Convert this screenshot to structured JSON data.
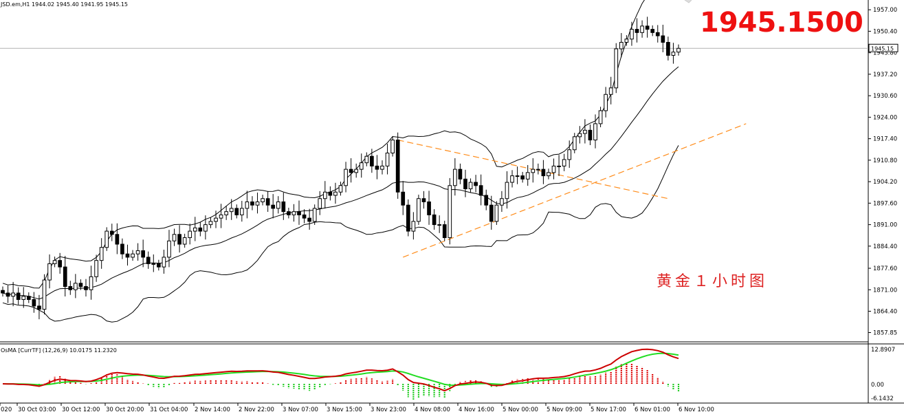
{
  "header": {
    "symbol_info": "JSD.em,H1  1944.02 1945.40 1941.95 1945.15"
  },
  "overlay": {
    "current_price": "1945.1500",
    "chinese_note": "黄金１小时图"
  },
  "oscillator": {
    "title": "OsMA [CurrTF] (12,26,9) 10.0175 11.2320",
    "axis_labels": [
      "12.8907",
      "0.00",
      "-6.1432"
    ]
  },
  "price_tag": "1945.15",
  "colors": {
    "candle_up": "#ffffff",
    "candle_down": "#000000",
    "bands": "#000000",
    "trend_dash": "#ff8c1a",
    "histogram_pos": "#dd0000",
    "histogram_neg": "#22cc22",
    "macd_line": "#cc0000",
    "signal_line": "#22dd22",
    "big_price": "#ee1111"
  },
  "chart_data": {
    "type": "candlestick",
    "title": "",
    "ylim": [
      1855,
      1960
    ],
    "y_ticks": [
      "1957.00",
      "1950.40",
      "1943.80",
      "1937.20",
      "1930.60",
      "1924.00",
      "1917.40",
      "1910.80",
      "1904.20",
      "1897.60",
      "1891.00",
      "1884.40",
      "1877.60",
      "1871.00",
      "1864.40",
      "1857.85"
    ],
    "x_ticks": [
      "020",
      "30 Oct 03:00",
      "30 Oct 12:00",
      "30 Oct 20:00",
      "31 Oct 04:00",
      "2 Nov 14:00",
      "2 Nov 22:00",
      "3 Nov 07:00",
      "3 Nov 15:00",
      "3 Nov 23:00",
      "4 Nov 08:00",
      "4 Nov 16:00",
      "5 Nov 00:00",
      "5 Nov 09:00",
      "5 Nov 17:00",
      "6 Nov 01:00",
      "6 Nov 10:00"
    ],
    "last_price": 1945.15,
    "close": [
      1870,
      1869,
      1870,
      1868,
      1869,
      1868,
      1866,
      1865,
      1874,
      1879,
      1880,
      1878,
      1872,
      1871,
      1873,
      1872,
      1871,
      1875,
      1880,
      1884,
      1889,
      1888,
      1885,
      1882,
      1881,
      1882,
      1883,
      1881,
      1879,
      1879,
      1878,
      1881,
      1886,
      1888,
      1885,
      1887,
      1889,
      1890,
      1889,
      1891,
      1892,
      1893,
      1894,
      1895,
      1896,
      1894,
      1896,
      1898,
      1897,
      1898,
      1899,
      1897,
      1896,
      1898,
      1895,
      1894,
      1895,
      1894,
      1893,
      1892,
      1896,
      1899,
      1901,
      1900,
      1901,
      1903,
      1908,
      1907,
      1908,
      1910,
      1912,
      1909,
      1908,
      1909,
      1913,
      1917,
      1901,
      1897,
      1889,
      1892,
      1899,
      1898,
      1894,
      1891,
      1891,
      1887,
      1903,
      1908,
      1905,
      1902,
      1904,
      1903,
      1900,
      1897,
      1892,
      1897,
      1899,
      1904,
      1906,
      1906,
      1905,
      1907,
      1908,
      1908,
      1906,
      1907,
      1909,
      1909,
      1911,
      1914,
      1918,
      1919,
      1920,
      1917,
      1922,
      1926,
      1931,
      1933,
      1945,
      1947,
      1948,
      1951,
      1950,
      1952,
      1951,
      1950,
      1949,
      1947,
      1943,
      1944,
      1945.15
    ]
  }
}
